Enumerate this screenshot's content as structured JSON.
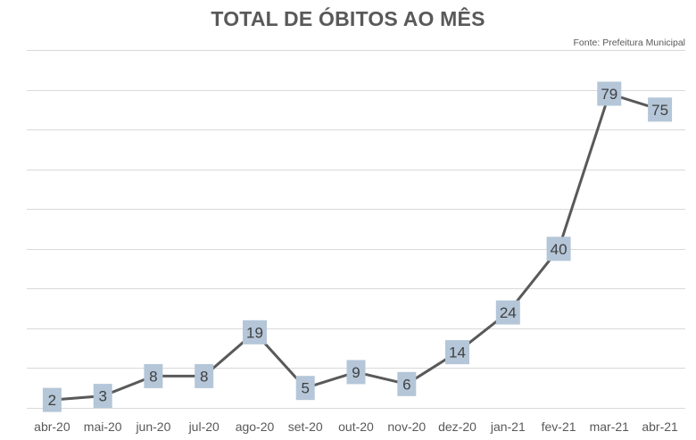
{
  "chart_data": {
    "type": "line",
    "title": "TOTAL DE ÓBITOS AO MÊS",
    "source": "Fonte: Prefeitura Municipal",
    "categories": [
      "abr-20",
      "mai-20",
      "jun-20",
      "jul-20",
      "ago-20",
      "set-20",
      "out-20",
      "nov-20",
      "dez-20",
      "jan-21",
      "fev-21",
      "mar-21",
      "abr-21"
    ],
    "series": [
      {
        "values": [
          2,
          3,
          8,
          8,
          19,
          5,
          9,
          6,
          14,
          24,
          40,
          79,
          75
        ]
      }
    ],
    "ylim": [
      0,
      90
    ],
    "grid": true,
    "data_labels": true,
    "colors": {
      "line": "#595959",
      "label_bg": "#b4c6d8",
      "grid": "#d9d9d9",
      "text": "#595959"
    }
  }
}
